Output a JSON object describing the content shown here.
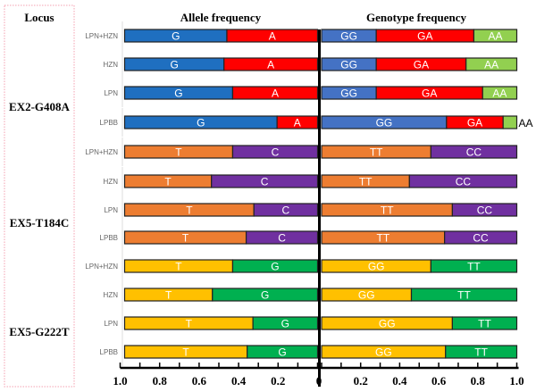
{
  "chart_data": {
    "type": "bar",
    "subtype": "horizontal-stacked-mirrored",
    "locus_header": "Locus",
    "panels": {
      "allele_title": "Allele frequency",
      "genotype_title": "Genotype frequency"
    },
    "axis": {
      "left_ticks": [
        "1.0",
        "0.8",
        "0.6",
        "0.4",
        "0.2"
      ],
      "center_tick": "0",
      "right_ticks": [
        "0.2",
        "0.4",
        "0.6",
        "0.8",
        "1.0"
      ],
      "xlim": [
        0,
        1
      ]
    },
    "colors": {
      "G408_allele_G": "#1f6fc0",
      "G408_allele_A": "#ff0000",
      "G408_GG": "#4472c4",
      "G408_GA": "#ff0000",
      "G408_AA": "#92d050",
      "T184_T": "#ed7d31",
      "T184_C": "#7030a0",
      "G222_T": "#ffc000",
      "G222_G": "#00b050"
    },
    "loci": [
      {
        "name": "EX2-G408A",
        "allele_labels": [
          "G",
          "A"
        ],
        "allele_colors": [
          "#1f6fc0",
          "#ff0000"
        ],
        "genotype_labels": [
          "GG",
          "GA",
          "AA"
        ],
        "genotype_colors": [
          "#4472c4",
          "#ff0000",
          "#92d050"
        ],
        "groups": [
          {
            "name": "LPN+HZN",
            "allele": [
              0.53,
              0.47
            ],
            "genotype": [
              0.28,
              0.5,
              0.22
            ]
          },
          {
            "name": "HZN",
            "allele": [
              0.515,
              0.485
            ],
            "genotype": [
              0.28,
              0.46,
              0.26
            ]
          },
          {
            "name": "LPN",
            "allele": [
              0.56,
              0.44
            ],
            "genotype": [
              0.28,
              0.545,
              0.175
            ]
          },
          {
            "name": "LPBB",
            "allele": [
              0.79,
              0.21
            ],
            "genotype": [
              0.64,
              0.29,
              0.07
            ],
            "outside_label": "AA"
          }
        ]
      },
      {
        "name": "EX5-T184C",
        "allele_labels": [
          "T",
          "C"
        ],
        "allele_colors": [
          "#ed7d31",
          "#7030a0"
        ],
        "genotype_labels": [
          "TT",
          "CC"
        ],
        "genotype_colors": [
          "#ed7d31",
          "#7030a0"
        ],
        "groups": [
          {
            "name": "LPN+HZN",
            "allele": [
              0.56,
              0.44
            ],
            "genotype": [
              0.56,
              0.44
            ]
          },
          {
            "name": "HZN",
            "allele": [
              0.45,
              0.55
            ],
            "genotype": [
              0.45,
              0.55
            ]
          },
          {
            "name": "LPN",
            "allele": [
              0.67,
              0.33
            ],
            "genotype": [
              0.67,
              0.33
            ]
          },
          {
            "name": "LPBB",
            "allele": [
              0.63,
              0.37
            ],
            "genotype": [
              0.63,
              0.37
            ]
          }
        ]
      },
      {
        "name": "EX5-G222T",
        "allele_labels": [
          "T",
          "G"
        ],
        "allele_colors": [
          "#ffc000",
          "#00b050"
        ],
        "genotype_labels": [
          "GG",
          "TT"
        ],
        "genotype_colors": [
          "#ffc000",
          "#00b050"
        ],
        "groups": [
          {
            "name": "LPN+HZN",
            "allele": [
              0.56,
              0.44
            ],
            "genotype": [
              0.56,
              0.44
            ]
          },
          {
            "name": "HZN",
            "allele": [
              0.455,
              0.545
            ],
            "genotype": [
              0.46,
              0.54
            ]
          },
          {
            "name": "LPN",
            "allele": [
              0.665,
              0.335
            ],
            "genotype": [
              0.67,
              0.33
            ]
          },
          {
            "name": "LPBB",
            "allele": [
              0.635,
              0.365
            ],
            "genotype": [
              0.635,
              0.365
            ]
          }
        ]
      }
    ]
  }
}
